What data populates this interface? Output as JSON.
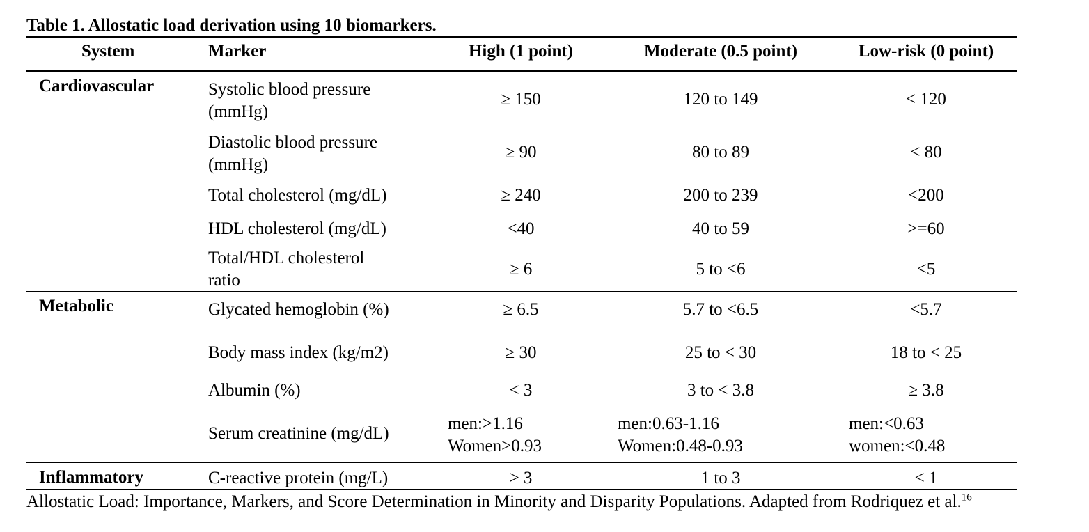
{
  "table": {
    "caption": "Table 1. Allostatic load derivation using 10 biomarkers.",
    "headers": {
      "system": "System",
      "marker": "Marker",
      "high": "High (1 point)",
      "moderate": "Moderate (0.5 point)",
      "low": "Low-risk (0 point)"
    },
    "groups": [
      {
        "system": "Cardiovascular",
        "rows": [
          {
            "marker": [
              "Systolic blood pressure",
              "(mmHg)"
            ],
            "high": "≥ 150",
            "moderate": "120 to 149",
            "low": "< 120"
          },
          {
            "marker": [
              "Diastolic blood pressure",
              "(mmHg)"
            ],
            "high": "≥ 90",
            "moderate": "80 to 89",
            "low": "< 80"
          },
          {
            "marker": [
              "Total cholesterol (mg/dL)"
            ],
            "high": "≥ 240",
            "moderate": "200 to 239",
            "low": "<200"
          },
          {
            "marker": [
              "HDL cholesterol (mg/dL)"
            ],
            "high": "<40",
            "moderate": "40 to 59",
            "low": ">=60"
          },
          {
            "marker": [
              "Total/HDL cholesterol",
              "ratio"
            ],
            "high": "≥ 6",
            "moderate": "5 to <6",
            "low": "<5"
          }
        ]
      },
      {
        "system": "Metabolic",
        "rows": [
          {
            "marker": [
              "Glycated hemoglobin (%)"
            ],
            "high": "≥ 6.5",
            "moderate": "5.7 to <6.5",
            "low": "<5.7"
          },
          {
            "marker": [
              "Body mass index (kg/m2)"
            ],
            "high": "≥ 30",
            "moderate": "25 to < 30",
            "low": "18 to < 25"
          },
          {
            "marker": [
              "Albumin (%)"
            ],
            "high": "< 3",
            "moderate": "3 to < 3.8",
            "low": "≥ 3.8"
          },
          {
            "marker": [
              "Serum creatinine (mg/dL)"
            ],
            "high": [
              "men:>1.16",
              "Women>0.93"
            ],
            "moderate": [
              "men:0.63-1.16",
              "Women:0.48-0.93"
            ],
            "low": [
              "men:<0.63",
              "women:<0.48"
            ]
          }
        ]
      },
      {
        "system": "Inflammatory",
        "rows": [
          {
            "marker": [
              "C-reactive protein (mg/L)"
            ],
            "high": "> 3",
            "moderate": "1 to 3",
            "low": "< 1"
          }
        ]
      }
    ],
    "footnote": "Allostatic Load: Importance, Markers, and Score Determination in Minority and Disparity Populations. Adapted from Rodriquez et al.",
    "footnote_ref": "16"
  }
}
